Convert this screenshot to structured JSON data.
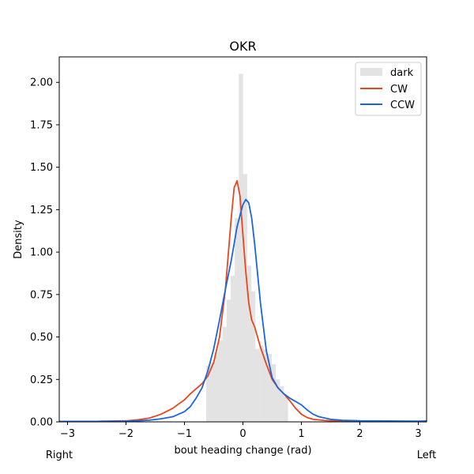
{
  "chart_data": {
    "type": "line",
    "title": "OKR",
    "xlabel": "bout heading change (rad)",
    "ylabel": "Density",
    "xlim": [
      -3.14159,
      3.14159
    ],
    "ylim": [
      0,
      2.15
    ],
    "xticks": [
      -3,
      -2,
      -1,
      0,
      1,
      2,
      3
    ],
    "xtick_labels": [
      "−3",
      "−2",
      "−1",
      "0",
      "1",
      "2",
      "3"
    ],
    "yticks": [
      0,
      0.25,
      0.5,
      0.75,
      1.0,
      1.25,
      1.5,
      1.75,
      2.0
    ],
    "ytick_labels": [
      "0.00",
      "0.25",
      "0.50",
      "0.75",
      "1.00",
      "1.25",
      "1.50",
      "1.75",
      "2.00"
    ],
    "annotations": {
      "left_end": "Right",
      "right_end": "Left"
    },
    "legend": {
      "position": "top-right",
      "entries": [
        "dark",
        "CW",
        "CCW"
      ]
    },
    "histogram": {
      "name": "dark",
      "color": "#e3e3e3",
      "bin_width": 0.0698,
      "bins": [
        {
          "x0": -0.628,
          "density": 0.33
        },
        {
          "x0": -0.559,
          "density": 0.35
        },
        {
          "x0": -0.489,
          "density": 0.41
        },
        {
          "x0": -0.419,
          "density": 0.48
        },
        {
          "x0": -0.349,
          "density": 0.56
        },
        {
          "x0": -0.279,
          "density": 0.72
        },
        {
          "x0": -0.209,
          "density": 0.86
        },
        {
          "x0": -0.14,
          "density": 1.2
        },
        {
          "x0": -0.07,
          "density": 2.05
        },
        {
          "x0": 0.0,
          "density": 1.46
        },
        {
          "x0": 0.07,
          "density": 0.92
        },
        {
          "x0": 0.14,
          "density": 0.77
        },
        {
          "x0": 0.209,
          "density": 0.43
        },
        {
          "x0": 0.279,
          "density": 0.45
        },
        {
          "x0": 0.349,
          "density": 0.43
        },
        {
          "x0": 0.419,
          "density": 0.4
        },
        {
          "x0": 0.489,
          "density": 0.34
        },
        {
          "x0": 0.559,
          "density": 0.25
        },
        {
          "x0": 0.628,
          "density": 0.21
        },
        {
          "x0": 0.698,
          "density": 0.15
        },
        {
          "x0": 3.072,
          "density": 0.01
        }
      ]
    },
    "series": [
      {
        "name": "CW",
        "color": "#e8461c",
        "x": [
          -3.14,
          -2.5,
          -2.0,
          -1.8,
          -1.6,
          -1.4,
          -1.2,
          -1.0,
          -0.9,
          -0.8,
          -0.7,
          -0.6,
          -0.5,
          -0.4,
          -0.3,
          -0.2,
          -0.15,
          -0.1,
          -0.05,
          0.0,
          0.05,
          0.1,
          0.15,
          0.2,
          0.3,
          0.4,
          0.5,
          0.6,
          0.7,
          0.8,
          0.9,
          1.0,
          1.1,
          1.2,
          1.4,
          1.6,
          2.0,
          2.5,
          3.14
        ],
        "y": [
          0.002,
          0.003,
          0.006,
          0.012,
          0.022,
          0.045,
          0.08,
          0.13,
          0.165,
          0.195,
          0.225,
          0.27,
          0.35,
          0.5,
          0.78,
          1.2,
          1.38,
          1.42,
          1.33,
          1.1,
          0.88,
          0.7,
          0.6,
          0.56,
          0.44,
          0.34,
          0.25,
          0.2,
          0.165,
          0.125,
          0.08,
          0.045,
          0.025,
          0.015,
          0.008,
          0.005,
          0.003,
          0.002,
          0.002
        ]
      },
      {
        "name": "CCW",
        "color": "#1a66e0",
        "x": [
          -3.14,
          -2.5,
          -2.0,
          -1.8,
          -1.6,
          -1.4,
          -1.2,
          -1.0,
          -0.9,
          -0.8,
          -0.7,
          -0.6,
          -0.5,
          -0.4,
          -0.3,
          -0.2,
          -0.1,
          0.0,
          0.05,
          0.1,
          0.15,
          0.2,
          0.3,
          0.4,
          0.5,
          0.6,
          0.7,
          0.8,
          0.9,
          1.0,
          1.1,
          1.2,
          1.3,
          1.5,
          1.7,
          2.0,
          2.5,
          3.0,
          3.14
        ],
        "y": [
          0.003,
          0.003,
          0.004,
          0.006,
          0.01,
          0.018,
          0.03,
          0.06,
          0.09,
          0.14,
          0.2,
          0.3,
          0.43,
          0.6,
          0.78,
          0.95,
          1.15,
          1.28,
          1.31,
          1.29,
          1.2,
          1.05,
          0.7,
          0.42,
          0.26,
          0.2,
          0.165,
          0.14,
          0.12,
          0.1,
          0.07,
          0.045,
          0.03,
          0.015,
          0.009,
          0.006,
          0.005,
          0.004,
          0.005
        ]
      }
    ]
  }
}
